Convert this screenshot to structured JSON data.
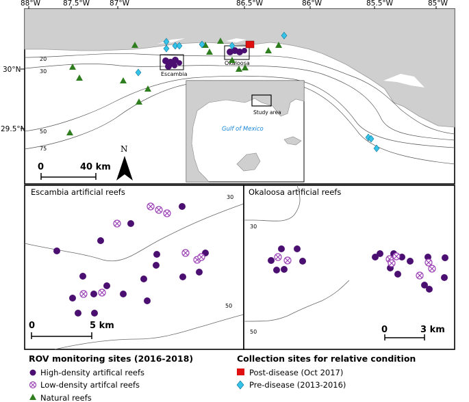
{
  "top_map": {
    "longitude_labels": [
      "88°W",
      "87.5°W",
      "87°W",
      "86.5°W",
      "86°W",
      "85.5°W",
      "85°W"
    ],
    "latitude_labels": [
      "30°N",
      "29.5°N"
    ],
    "depth_labels": [
      "20",
      "30",
      "50",
      "75"
    ],
    "box_labels": [
      "Escambia",
      "Okaloosa"
    ],
    "north_label": "N",
    "scale_start": "0",
    "scale_end": "40 km",
    "inset": {
      "study_area_label": "Study area",
      "gulf_label": "Gulf of Mexico"
    }
  },
  "escambia_panel": {
    "title": "Escambia artificial reefs",
    "depth_labels": [
      "30",
      "50"
    ],
    "scale_start": "0",
    "scale_end": "5 km"
  },
  "okaloosa_panel": {
    "title": "Okaloosa artificial reefs",
    "depth_labels": [
      "30",
      "50"
    ],
    "scale_start": "0",
    "scale_end": "3 km"
  },
  "legend": {
    "rov_title": "ROV monitoring sites (2016-2018)",
    "rov_items": [
      "High-density artifical reefs",
      "Low-density artifcal reefs",
      "Natural reefs"
    ],
    "collection_title": "Collection sites for relative condition",
    "collection_items": [
      "Post-disease (Oct 2017)",
      "Pre-disease (2013-2016)"
    ]
  },
  "colors": {
    "land": "#cfcfcf",
    "high_density": "#4b0f72",
    "low_density": "#9a3fb5",
    "natural": "#2e7d1e",
    "post_disease": "#e01010",
    "pre_disease": "#35c3ea",
    "gulf_label": "#1a86d9"
  }
}
